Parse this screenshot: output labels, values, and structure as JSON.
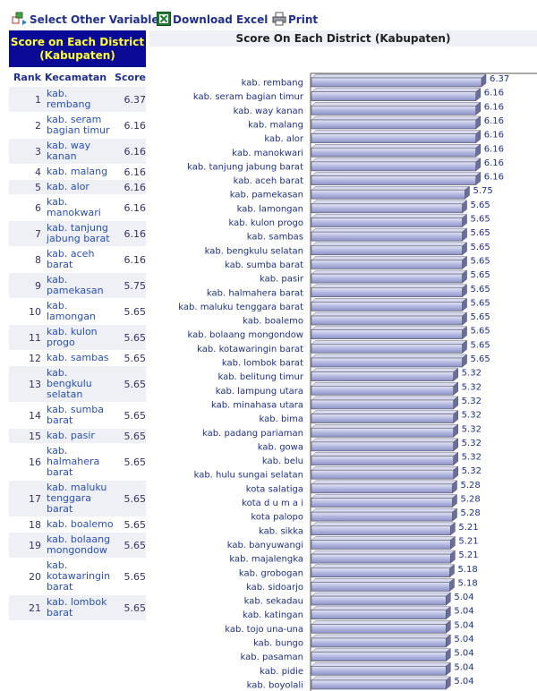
{
  "toolbar": {
    "select_label": "Select Other Variable",
    "download_label": "Download Excel",
    "print_label": "Print"
  },
  "table": {
    "title": "Score on Each District (Kabupaten)",
    "col_rank": "Rank",
    "col_name": "Kecamatan",
    "col_score": "Score",
    "rows": [
      {
        "rank": "1",
        "name": "kab. rembang",
        "score": "6.37"
      },
      {
        "rank": "2",
        "name": "kab. seram bagian timur",
        "score": "6.16"
      },
      {
        "rank": "3",
        "name": "kab. way kanan",
        "score": "6.16"
      },
      {
        "rank": "4",
        "name": "kab. malang",
        "score": "6.16"
      },
      {
        "rank": "5",
        "name": "kab. alor",
        "score": "6.16"
      },
      {
        "rank": "6",
        "name": "kab. manokwari",
        "score": "6.16"
      },
      {
        "rank": "7",
        "name": "kab. tanjung jabung barat",
        "score": "6.16"
      },
      {
        "rank": "8",
        "name": "kab. aceh barat",
        "score": "6.16"
      },
      {
        "rank": "9",
        "name": "kab. pamekasan",
        "score": "5.75"
      },
      {
        "rank": "10",
        "name": "kab. lamongan",
        "score": "5.65"
      },
      {
        "rank": "11",
        "name": "kab. kulon progo",
        "score": "5.65"
      },
      {
        "rank": "12",
        "name": "kab. sambas",
        "score": "5.65"
      },
      {
        "rank": "13",
        "name": "kab. bengkulu selatan",
        "score": "5.65"
      },
      {
        "rank": "14",
        "name": "kab. sumba barat",
        "score": "5.65"
      },
      {
        "rank": "15",
        "name": "kab. pasir",
        "score": "5.65"
      },
      {
        "rank": "16",
        "name": "kab. halmahera barat",
        "score": "5.65"
      },
      {
        "rank": "17",
        "name": "kab. maluku tenggara barat",
        "score": "5.65"
      },
      {
        "rank": "18",
        "name": "kab. boalemo",
        "score": "5.65"
      },
      {
        "rank": "19",
        "name": "kab. bolaang mongondow",
        "score": "5.65"
      },
      {
        "rank": "20",
        "name": "kab. kotawaringin barat",
        "score": "5.65"
      },
      {
        "rank": "21",
        "name": "kab. lombok barat",
        "score": "5.65"
      }
    ]
  },
  "chart_data": {
    "type": "bar",
    "orientation": "horizontal",
    "title": "Score On Each District (Kabupaten)",
    "bar_color": "#b4b8e0",
    "categories": [
      "kab. rembang",
      "kab. seram bagian timur",
      "kab. way kanan",
      "kab. malang",
      "kab. alor",
      "kab. manokwari",
      "kab. tanjung jabung barat",
      "kab. aceh barat",
      "kab. pamekasan",
      "kab. lamongan",
      "kab. kulon progo",
      "kab. sambas",
      "kab. bengkulu selatan",
      "kab. sumba barat",
      "kab. pasir",
      "kab. halmahera barat",
      "kab. maluku tenggara barat",
      "kab. boalemo",
      "kab. bolaang mongondow",
      "kab. kotawaringin barat",
      "kab. lombok barat",
      "kab. belitung timur",
      "kab. lampung utara",
      "kab. minahasa utara",
      "kab. bima",
      "kab. padang pariaman",
      "kab. gowa",
      "kab. belu",
      "kab. hulu sungai selatan",
      "kota salatiga",
      "kota d u m a i",
      "kota palopo",
      "kab. sikka",
      "kab. banyuwangi",
      "kab. majalengka",
      "kab. grobogan",
      "kab. sidoarjo",
      "kab. sekadau",
      "kab. katingan",
      "kab. tojo una-una",
      "kab. bungo",
      "kab. pasaman",
      "kab. pidie",
      "kab. boyolali"
    ],
    "values": [
      6.37,
      6.16,
      6.16,
      6.16,
      6.16,
      6.16,
      6.16,
      6.16,
      5.75,
      5.65,
      5.65,
      5.65,
      5.65,
      5.65,
      5.65,
      5.65,
      5.65,
      5.65,
      5.65,
      5.65,
      5.65,
      5.32,
      5.32,
      5.32,
      5.32,
      5.32,
      5.32,
      5.32,
      5.32,
      5.28,
      5.28,
      5.28,
      5.21,
      5.21,
      5.21,
      5.18,
      5.18,
      5.04,
      5.04,
      5.04,
      5.04,
      5.04,
      5.04,
      5.04
    ]
  }
}
